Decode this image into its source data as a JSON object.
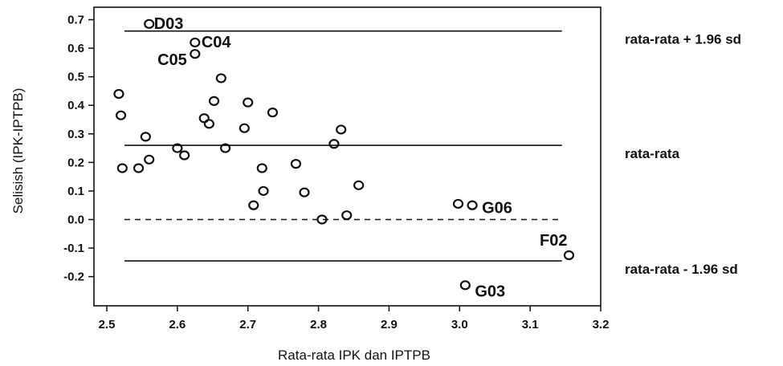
{
  "chart_data": {
    "type": "scatter",
    "xlabel": "Rata-rata IPK dan IPTPB",
    "ylabel": "Selisish (IPK-IPTPB)",
    "xlim": [
      2.5,
      3.2
    ],
    "ylim": [
      -0.27,
      0.72
    ],
    "xticks": [
      "2.5",
      "2.6",
      "2.7",
      "2.8",
      "2.9",
      "3.0",
      "3.1",
      "3.2"
    ],
    "yticks": [
      "0.7",
      "0.6",
      "0.5",
      "0.4",
      "0.3",
      "0.2",
      "0.1",
      "0.0",
      "-0.1",
      "-0.2"
    ],
    "grid": false,
    "reference_lines": [
      {
        "label": "rata-rata + 1.96 sd",
        "y": 0.66,
        "style": "solid"
      },
      {
        "label": "rata-rata",
        "y": 0.26,
        "style": "solid"
      },
      {
        "label": "",
        "y": 0.0,
        "style": "dashed"
      },
      {
        "label": "rata-rata - 1.96 sd",
        "y": -0.145,
        "style": "solid"
      }
    ],
    "points": [
      {
        "x": 2.56,
        "y": 0.685,
        "label": "D03"
      },
      {
        "x": 2.625,
        "y": 0.62,
        "label": "C04"
      },
      {
        "x": 2.625,
        "y": 0.58,
        "label": "C05"
      },
      {
        "x": 2.517,
        "y": 0.44,
        "label": ""
      },
      {
        "x": 2.52,
        "y": 0.365,
        "label": ""
      },
      {
        "x": 2.522,
        "y": 0.18,
        "label": ""
      },
      {
        "x": 2.545,
        "y": 0.18,
        "label": ""
      },
      {
        "x": 2.555,
        "y": 0.29,
        "label": ""
      },
      {
        "x": 2.56,
        "y": 0.21,
        "label": ""
      },
      {
        "x": 2.6,
        "y": 0.25,
        "label": ""
      },
      {
        "x": 2.61,
        "y": 0.225,
        "label": ""
      },
      {
        "x": 2.638,
        "y": 0.355,
        "label": ""
      },
      {
        "x": 2.645,
        "y": 0.335,
        "label": ""
      },
      {
        "x": 2.652,
        "y": 0.415,
        "label": ""
      },
      {
        "x": 2.662,
        "y": 0.495,
        "label": ""
      },
      {
        "x": 2.668,
        "y": 0.25,
        "label": ""
      },
      {
        "x": 2.695,
        "y": 0.32,
        "label": ""
      },
      {
        "x": 2.7,
        "y": 0.41,
        "label": ""
      },
      {
        "x": 2.708,
        "y": 0.05,
        "label": ""
      },
      {
        "x": 2.72,
        "y": 0.18,
        "label": ""
      },
      {
        "x": 2.722,
        "y": 0.1,
        "label": ""
      },
      {
        "x": 2.735,
        "y": 0.375,
        "label": ""
      },
      {
        "x": 2.768,
        "y": 0.195,
        "label": ""
      },
      {
        "x": 2.78,
        "y": 0.095,
        "label": ""
      },
      {
        "x": 2.805,
        "y": 0.0,
        "label": ""
      },
      {
        "x": 2.822,
        "y": 0.265,
        "label": ""
      },
      {
        "x": 2.832,
        "y": 0.315,
        "label": ""
      },
      {
        "x": 2.84,
        "y": 0.015,
        "label": ""
      },
      {
        "x": 2.857,
        "y": 0.12,
        "label": ""
      },
      {
        "x": 2.998,
        "y": 0.055,
        "label": ""
      },
      {
        "x": 3.018,
        "y": 0.05,
        "label": "G06"
      },
      {
        "x": 3.155,
        "y": -0.125,
        "label": "F02"
      },
      {
        "x": 3.008,
        "y": -0.23,
        "label": "G03"
      }
    ]
  }
}
